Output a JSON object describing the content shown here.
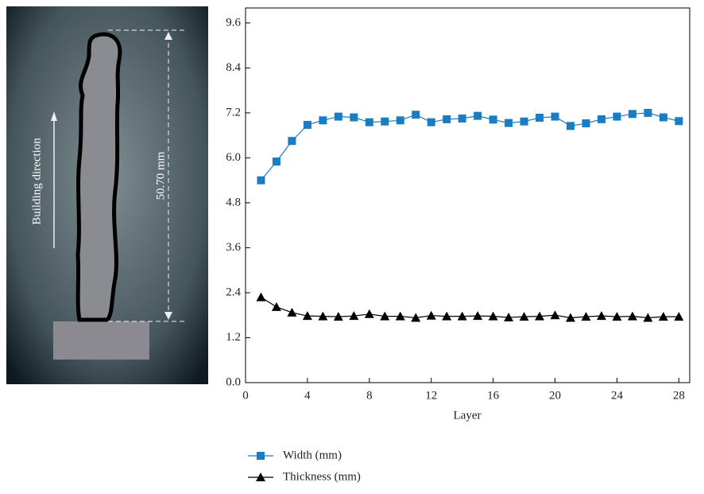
{
  "image": {
    "direction_label": "Building direction",
    "dimension_label": "50.70 mm"
  },
  "chart_data": {
    "type": "line",
    "x_label": "Layer",
    "x": [
      1,
      2,
      3,
      4,
      5,
      6,
      7,
      8,
      9,
      10,
      11,
      12,
      13,
      14,
      15,
      16,
      17,
      18,
      19,
      20,
      21,
      22,
      23,
      24,
      25,
      26,
      27,
      28
    ],
    "series": [
      {
        "name": "Width (mm)",
        "color": "#1a7cc1",
        "marker": "square",
        "values": [
          5.4,
          5.9,
          6.45,
          6.88,
          7.0,
          7.1,
          7.08,
          6.95,
          6.97,
          7.0,
          7.15,
          6.95,
          7.03,
          7.05,
          7.12,
          7.02,
          6.93,
          6.97,
          7.07,
          7.1,
          6.85,
          6.92,
          7.03,
          7.1,
          7.17,
          7.2,
          7.08,
          6.98
        ]
      },
      {
        "name": "Thickness (mm)",
        "color": "#000000",
        "marker": "triangle",
        "values": [
          2.28,
          2.02,
          1.87,
          1.78,
          1.77,
          1.76,
          1.78,
          1.83,
          1.77,
          1.77,
          1.73,
          1.79,
          1.77,
          1.77,
          1.78,
          1.77,
          1.74,
          1.76,
          1.77,
          1.8,
          1.73,
          1.76,
          1.78,
          1.76,
          1.77,
          1.73,
          1.76,
          1.76
        ]
      }
    ],
    "xlim": [
      0,
      28.7
    ],
    "xticks": [
      0,
      4,
      8,
      12,
      16,
      20,
      24,
      28
    ],
    "ylim": [
      0,
      10
    ],
    "yticks": [
      {
        "value": 0,
        "label": "0.0"
      },
      1.2,
      2.4,
      3.6,
      4.8,
      {
        "value": 6,
        "label": "6.0"
      },
      7.2,
      8.4,
      9.6
    ],
    "legend": "bottom",
    "grid": false
  }
}
